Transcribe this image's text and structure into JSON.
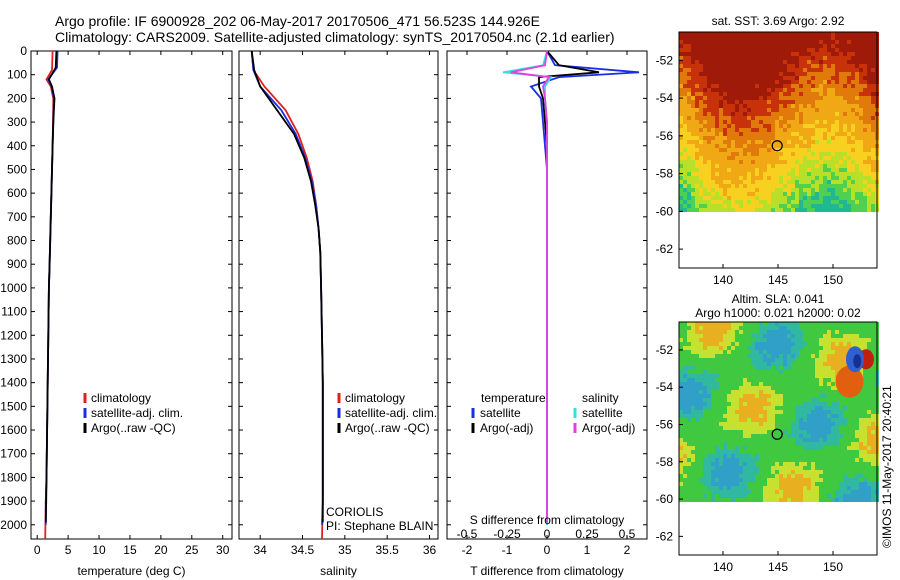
{
  "header": {
    "line1": "Argo profile: IF 6900928_202 06-May-2017 20170506_471 56.523S 144.926E",
    "line2": "Climatology: CARS2009. Satellite-adjusted climatology: synTS_20170504.nc (2.1d earlier)"
  },
  "colors": {
    "climatology": "#e0201a",
    "satellite": "#1a2ee6",
    "argo": "#000000",
    "satellite_sal": "#33e0e0",
    "argo_sal": "#e040e0"
  },
  "chart_data": [
    {
      "type": "line",
      "panel": "temperature",
      "xlabel": "temperature (deg C)",
      "xlim": [
        -1,
        31.5
      ],
      "ylim": [
        2060,
        0
      ],
      "xticks": [
        "0",
        "5",
        "10",
        "15",
        "20",
        "25",
        "30"
      ],
      "xtick_values": [
        0,
        5,
        10,
        15,
        20,
        25,
        30
      ],
      "yticks": [
        "0",
        "100",
        "200",
        "300",
        "400",
        "500",
        "600",
        "700",
        "800",
        "900",
        "1000",
        "1100",
        "1200",
        "1300",
        "1400",
        "1500",
        "1600",
        "1700",
        "1800",
        "1900",
        "2000"
      ],
      "ytick_values": [
        0,
        100,
        200,
        300,
        400,
        500,
        600,
        700,
        800,
        900,
        1000,
        1100,
        1200,
        1300,
        1400,
        1500,
        1600,
        1700,
        1800,
        1900,
        2000
      ],
      "legend": [
        "climatology",
        "satellite-adj. clim.",
        "Argo(..raw -QC)"
      ],
      "series": [
        {
          "name": "climatology",
          "color": "#e0201a",
          "x": [
            2.5,
            2.4,
            1.5,
            2.2,
            2.6,
            2.55,
            2.5,
            2.4,
            2.3,
            2.2,
            2.1,
            2.0,
            1.9,
            1.8,
            1.7,
            1.6,
            1.5,
            1.4,
            1.3
          ],
          "y": [
            0,
            80,
            120,
            150,
            200,
            300,
            400,
            500,
            600,
            700,
            800,
            900,
            1000,
            1200,
            1400,
            1600,
            1800,
            1900,
            2060
          ]
        },
        {
          "name": "satellite-adj. clim.",
          "color": "#1a2ee6",
          "x": [
            3.3,
            3.2,
            1.8,
            2.3,
            2.7,
            2.6,
            2.5,
            2.4,
            2.3,
            2.2,
            2.1,
            2.0,
            1.9,
            1.8,
            1.7,
            1.6,
            1.5,
            1.4,
            1.4
          ],
          "y": [
            0,
            70,
            120,
            150,
            200,
            300,
            400,
            500,
            600,
            700,
            800,
            900,
            1000,
            1200,
            1400,
            1600,
            1800,
            1900,
            2000
          ]
        },
        {
          "name": "Argo(..raw -QC)",
          "color": "#000000",
          "x": [
            3.1,
            3.0,
            1.9,
            2.4,
            2.8,
            2.6,
            2.5,
            2.4,
            2.3,
            2.2,
            2.1,
            2.0,
            1.9,
            1.8,
            1.7,
            1.6,
            1.5,
            1.45,
            1.4
          ],
          "y": [
            0,
            70,
            120,
            150,
            200,
            300,
            400,
            500,
            600,
            700,
            800,
            900,
            1000,
            1200,
            1400,
            1600,
            1800,
            1900,
            1990
          ]
        }
      ]
    },
    {
      "type": "line",
      "panel": "salinity",
      "xlabel": "salinity",
      "xlim": [
        33.75,
        36.1
      ],
      "ylim": [
        2060,
        0
      ],
      "xticks": [
        "34",
        "34.5",
        "35",
        "35.5",
        "36"
      ],
      "xtick_values": [
        34,
        34.5,
        35,
        35.5,
        36
      ],
      "legend": [
        "climatology",
        "satellite-adj. clim.",
        "Argo(..raw -QC)"
      ],
      "annotation": [
        "CORIOLIS",
        "PI: Stephane BLAIN"
      ],
      "series": [
        {
          "name": "climatology",
          "color": "#e0201a",
          "x": [
            33.9,
            33.92,
            34.05,
            34.3,
            34.45,
            34.55,
            34.62,
            34.66,
            34.69,
            34.71,
            34.72,
            34.73,
            34.74,
            34.74,
            34.74,
            34.74,
            34.73
          ],
          "y": [
            0,
            80,
            150,
            250,
            350,
            450,
            550,
            650,
            750,
            850,
            1000,
            1200,
            1400,
            1600,
            1800,
            1900,
            2060
          ]
        },
        {
          "name": "satellite-adj. clim.",
          "color": "#1a2ee6",
          "x": [
            33.9,
            33.92,
            34.0,
            34.25,
            34.42,
            34.53,
            34.61,
            34.66,
            34.69,
            34.71,
            34.72,
            34.73,
            34.74,
            34.74,
            34.74,
            34.74,
            34.73
          ],
          "y": [
            0,
            80,
            150,
            250,
            350,
            450,
            550,
            650,
            750,
            850,
            1000,
            1200,
            1400,
            1600,
            1800,
            1900,
            2000
          ]
        },
        {
          "name": "Argo(..raw -QC)",
          "color": "#000000",
          "x": [
            33.9,
            33.93,
            34.0,
            34.2,
            34.4,
            34.52,
            34.6,
            34.65,
            34.69,
            34.71,
            34.72,
            34.73,
            34.74,
            34.74,
            34.74,
            34.74,
            34.74
          ],
          "y": [
            0,
            80,
            150,
            250,
            350,
            450,
            550,
            650,
            750,
            850,
            1000,
            1200,
            1400,
            1600,
            1800,
            1900,
            1990
          ]
        }
      ]
    },
    {
      "type": "line",
      "panel": "difference",
      "xlabel": "T difference from climatology",
      "xlabel2": "S difference from climatology",
      "xlim": [
        -2.5,
        2.5
      ],
      "ylim": [
        2060,
        0
      ],
      "xticks": [
        "-2",
        "-1",
        "0",
        "1",
        "2"
      ],
      "xtick_values": [
        -2,
        -1,
        0,
        1,
        2
      ],
      "xticks2": [
        "-0.5",
        "-0.25",
        "0",
        "0.25",
        "0.5"
      ],
      "xtick2_values": [
        -2,
        -1,
        0,
        1,
        2
      ],
      "legend_temperature": [
        "temperature",
        "satellite",
        "Argo(-adj)"
      ],
      "legend_salinity": [
        "salinity",
        "satellite",
        "Argo(-adj)"
      ],
      "series": [
        {
          "name": "satellite",
          "group": "temperature",
          "color": "#1a2ee6",
          "x": [
            0.0,
            0.2,
            2.3,
            0.3,
            -0.4,
            -0.15,
            -0.1,
            -0.05,
            0,
            0,
            0,
            0,
            0,
            0,
            0
          ],
          "y": [
            0,
            60,
            90,
            110,
            150,
            200,
            300,
            400,
            500,
            700,
            900,
            1200,
            1500,
            1800,
            2000
          ]
        },
        {
          "name": "Argo(-adj)",
          "group": "temperature",
          "color": "#000000",
          "x": [
            0.0,
            0.3,
            1.3,
            -0.2,
            -0.2,
            -0.1,
            -0.05,
            0,
            0,
            0,
            0,
            0,
            0,
            0,
            0
          ],
          "y": [
            0,
            60,
            90,
            110,
            150,
            200,
            300,
            400,
            500,
            700,
            900,
            1200,
            1500,
            1800,
            1990
          ]
        },
        {
          "name": "satellite",
          "group": "salinity",
          "color": "#33e0e0",
          "x": [
            0.0,
            -0.1,
            -1.1,
            0.1,
            -0.05,
            -0.05,
            0,
            0,
            0,
            0,
            0,
            0,
            0,
            0,
            0
          ],
          "y": [
            0,
            60,
            90,
            110,
            150,
            200,
            300,
            400,
            500,
            700,
            900,
            1200,
            1500,
            1800,
            2000
          ]
        },
        {
          "name": "Argo(-adj)",
          "group": "salinity",
          "color": "#e040e0",
          "x": [
            0.0,
            -0.05,
            -0.9,
            0.05,
            -0.1,
            -0.05,
            0,
            0,
            0,
            0,
            0,
            0,
            0,
            0,
            0
          ],
          "y": [
            0,
            60,
            90,
            110,
            150,
            200,
            300,
            400,
            500,
            700,
            900,
            1200,
            1500,
            1800,
            1990
          ]
        }
      ]
    },
    {
      "type": "heatmap",
      "panel": "sst-map",
      "title": "sat. SST: 3.69 Argo: 2.92",
      "xlim": [
        136,
        154
      ],
      "ylim": [
        -63,
        -50.5
      ],
      "xticks": [
        "140",
        "145",
        "150"
      ],
      "xtick_values": [
        140,
        145,
        150
      ],
      "yticks": [
        "-52",
        "-54",
        "-56",
        "-58",
        "-60",
        "-62"
      ],
      "ytick_values": [
        -52,
        -54,
        -56,
        -58,
        -60,
        -62
      ],
      "data_extent_lat": [
        -60,
        -50.5
      ],
      "marker": {
        "lon": 144.926,
        "lat": -56.523
      }
    },
    {
      "type": "heatmap",
      "panel": "sla-map",
      "title": "Altim. SLA: 0.041",
      "subtitle": "Argo h1000: 0.021 h2000: 0.02",
      "xlim": [
        136,
        154
      ],
      "ylim": [
        -63,
        -50.5
      ],
      "xticks": [
        "140",
        "145",
        "150"
      ],
      "xtick_values": [
        140,
        145,
        150
      ],
      "yticks": [
        "-52",
        "-54",
        "-56",
        "-58",
        "-60",
        "-62"
      ],
      "ytick_values": [
        -52,
        -54,
        -56,
        -58,
        -60,
        -62
      ],
      "data_extent_lat": [
        -60,
        -50.5
      ],
      "marker": {
        "lon": 144.926,
        "lat": -56.523
      }
    }
  ],
  "footer": {
    "credit": "©IMOS 11-May-2017 20:40:21"
  }
}
